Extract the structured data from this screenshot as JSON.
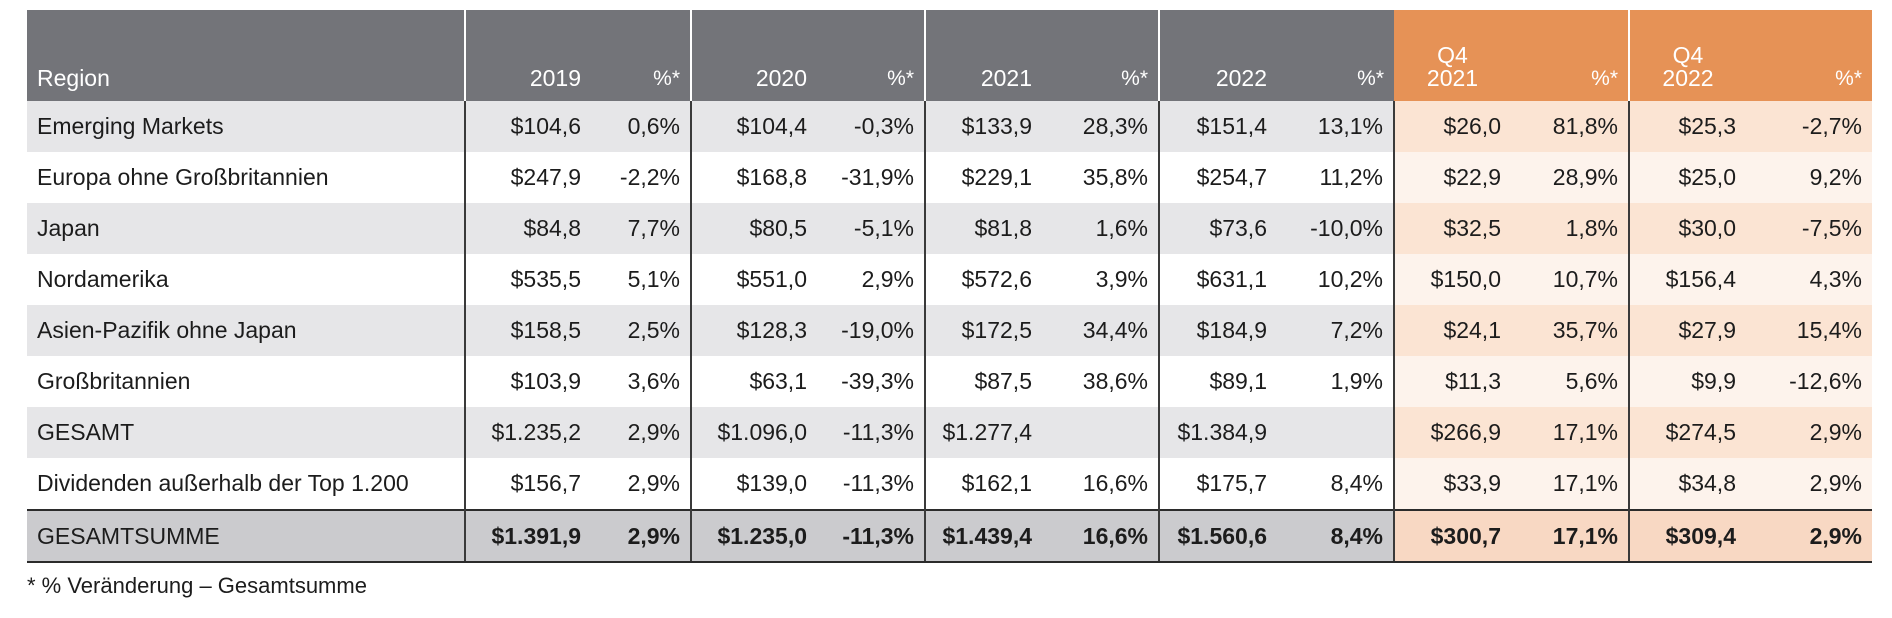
{
  "chart_data": {
    "type": "table",
    "headers": [
      {
        "l1": "",
        "l2": "Region"
      },
      {
        "l1": "",
        "l2": "2019"
      },
      {
        "l1": "",
        "l2": "%*"
      },
      {
        "l1": "",
        "l2": "2020"
      },
      {
        "l1": "",
        "l2": "%*"
      },
      {
        "l1": "",
        "l2": "2021"
      },
      {
        "l1": "",
        "l2": "%*"
      },
      {
        "l1": "",
        "l2": "2022"
      },
      {
        "l1": "",
        "l2": "%*"
      },
      {
        "l1": "Q4",
        "l2": "2021"
      },
      {
        "l1": "",
        "l2": "%*"
      },
      {
        "l1": "Q4",
        "l2": "2022"
      },
      {
        "l1": "",
        "l2": "%*"
      }
    ],
    "rows": [
      [
        "Emerging Markets",
        "$104,6",
        "0,6%",
        "$104,4",
        "-0,3%",
        "$133,9",
        "28,3%",
        "$151,4",
        "13,1%",
        "$26,0",
        "81,8%",
        "$25,3",
        "-2,7%"
      ],
      [
        "Europa ohne Großbritannien",
        "$247,9",
        "-2,2%",
        "$168,8",
        "-31,9%",
        "$229,1",
        "35,8%",
        "$254,7",
        "11,2%",
        "$22,9",
        "28,9%",
        "$25,0",
        "9,2%"
      ],
      [
        "Japan",
        "$84,8",
        "7,7%",
        "$80,5",
        "-5,1%",
        "$81,8",
        "1,6%",
        "$73,6",
        "-10,0%",
        "$32,5",
        "1,8%",
        "$30,0",
        "-7,5%"
      ],
      [
        "Nordamerika",
        "$535,5",
        "5,1%",
        "$551,0",
        "2,9%",
        "$572,6",
        "3,9%",
        "$631,1",
        "10,2%",
        "$150,0",
        "10,7%",
        "$156,4",
        "4,3%"
      ],
      [
        "Asien-Pazifik ohne Japan",
        "$158,5",
        "2,5%",
        "$128,3",
        "-19,0%",
        "$172,5",
        "34,4%",
        "$184,9",
        "7,2%",
        "$24,1",
        "35,7%",
        "$27,9",
        "15,4%"
      ],
      [
        "Großbritannien",
        "$103,9",
        "3,6%",
        "$63,1",
        "-39,3%",
        "$87,5",
        "38,6%",
        "$89,1",
        "1,9%",
        "$11,3",
        "5,6%",
        "$9,9",
        "-12,6%"
      ],
      [
        "GESAMT",
        "$1.235,2",
        "2,9%",
        "$1.096,0",
        "-11,3%",
        "$1.277,4",
        "",
        "$1.384,9",
        "",
        "$266,9",
        "17,1%",
        "$274,5",
        "2,9%"
      ],
      [
        "Dividenden außerhalb der Top 1.200",
        "$156,7",
        "2,9%",
        "$139,0",
        "-11,3%",
        "$162,1",
        "16,6%",
        "$175,7",
        "8,4%",
        "$33,9",
        "17,1%",
        "$34,8",
        "2,9%"
      ],
      [
        "GESAMTSUMME",
        "$1.391,9",
        "2,9%",
        "$1.235,0",
        "-11,3%",
        "$1.439,4",
        "16,6%",
        "$1.560,6",
        "8,4%",
        "$300,7",
        "17,1%",
        "$309,4",
        "2,9%"
      ]
    ]
  },
  "footnote": "* % Veränderung – Gesamtsumme",
  "colors": {
    "header_gray": "#737479",
    "header_orange": "#e69256",
    "row_gray": "#e6e6e8",
    "row_orange": "#fbe4d3",
    "total_gray": "#cbcbce",
    "total_orange": "#f8d8c3"
  }
}
